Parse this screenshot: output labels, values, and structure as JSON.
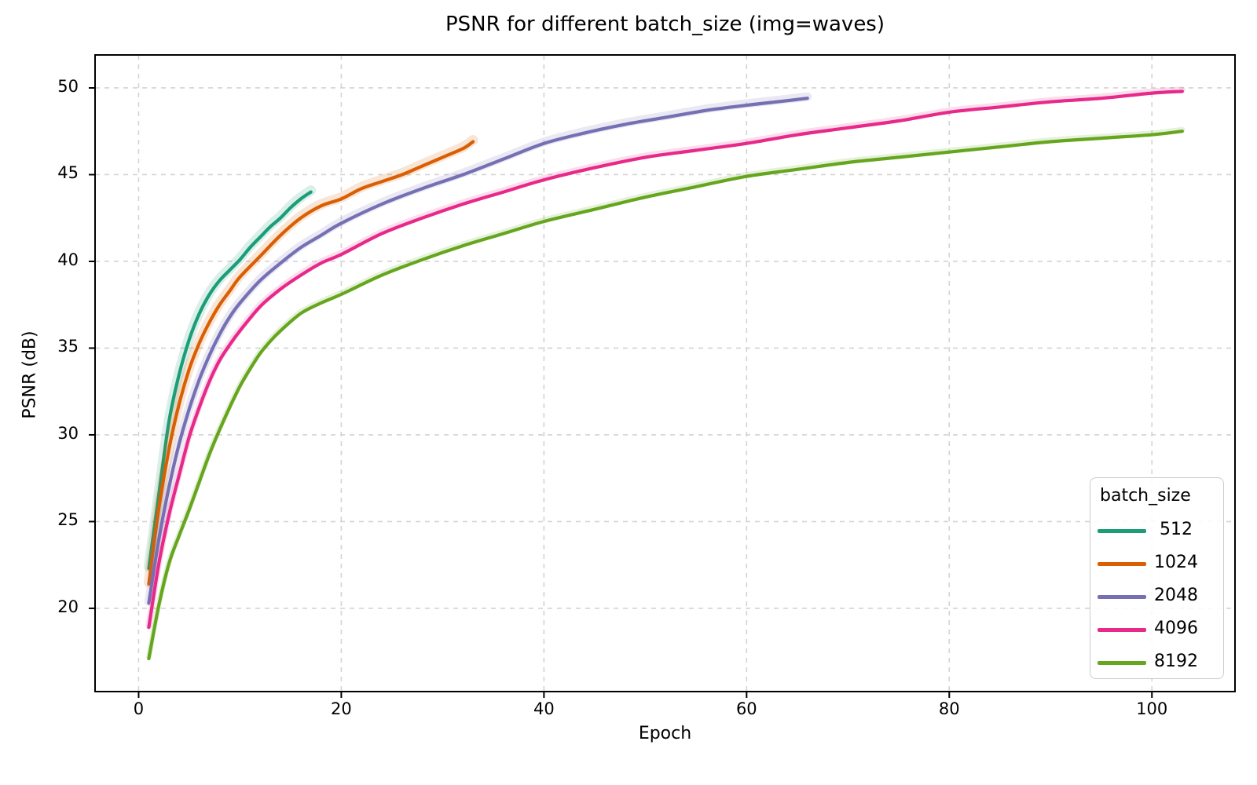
{
  "chart_data": {
    "type": "line",
    "title": "PSNR for different batch_size (img=waves)",
    "xlabel": "Epoch",
    "ylabel": "PSNR (dB)",
    "xlim": [
      -4.3,
      108.2
    ],
    "ylim": [
      15.2,
      51.9
    ],
    "x_ticks": [
      "0",
      "20",
      "40",
      "60",
      "80",
      "100"
    ],
    "x_tick_values": [
      0,
      20,
      40,
      60,
      80,
      100
    ],
    "y_ticks": [
      "20",
      "25",
      "30",
      "35",
      "40",
      "45",
      "50"
    ],
    "y_tick_values": [
      20,
      25,
      30,
      35,
      40,
      45,
      50
    ],
    "grid": "dashed",
    "grid_color": "#d3d3d3",
    "spine_color": "#000000",
    "legend": {
      "title": "batch_size",
      "position": "lower right"
    },
    "series": [
      {
        "name": "512",
        "color": "#1b9e77",
        "band_width": 13,
        "points": [
          [
            1,
            22.3
          ],
          [
            2,
            26.6
          ],
          [
            3,
            30.8
          ],
          [
            4,
            33.5
          ],
          [
            5,
            35.5
          ],
          [
            6,
            37.0
          ],
          [
            7,
            38.1
          ],
          [
            8,
            38.9
          ],
          [
            9,
            39.5
          ],
          [
            10,
            40.1
          ],
          [
            11,
            40.8
          ],
          [
            12,
            41.4
          ],
          [
            13,
            42.0
          ],
          [
            14,
            42.5
          ],
          [
            15,
            43.1
          ],
          [
            16,
            43.6
          ],
          [
            17,
            44.0
          ]
        ]
      },
      {
        "name": "1024",
        "color": "#d95f02",
        "band_width": 13,
        "points": [
          [
            1,
            21.4
          ],
          [
            2,
            25.8
          ],
          [
            3,
            29.2
          ],
          [
            4,
            31.8
          ],
          [
            5,
            33.8
          ],
          [
            6,
            35.3
          ],
          [
            7,
            36.5
          ],
          [
            8,
            37.5
          ],
          [
            9,
            38.3
          ],
          [
            10,
            39.1
          ],
          [
            12,
            40.3
          ],
          [
            14,
            41.5
          ],
          [
            16,
            42.5
          ],
          [
            18,
            43.2
          ],
          [
            20,
            43.6
          ],
          [
            22,
            44.2
          ],
          [
            24,
            44.6
          ],
          [
            26,
            45.0
          ],
          [
            28,
            45.5
          ],
          [
            30,
            46.0
          ],
          [
            32,
            46.5
          ],
          [
            33,
            46.9
          ]
        ]
      },
      {
        "name": "2048",
        "color": "#7570b3",
        "band_width": 11,
        "points": [
          [
            1,
            20.3
          ],
          [
            2,
            24.0
          ],
          [
            3,
            27.0
          ],
          [
            4,
            29.5
          ],
          [
            5,
            31.5
          ],
          [
            6,
            33.2
          ],
          [
            7,
            34.6
          ],
          [
            8,
            35.8
          ],
          [
            9,
            36.8
          ],
          [
            10,
            37.6
          ],
          [
            12,
            38.9
          ],
          [
            14,
            39.9
          ],
          [
            16,
            40.8
          ],
          [
            18,
            41.5
          ],
          [
            20,
            42.2
          ],
          [
            24,
            43.3
          ],
          [
            28,
            44.2
          ],
          [
            32,
            45.0
          ],
          [
            36,
            45.9
          ],
          [
            40,
            46.8
          ],
          [
            44,
            47.4
          ],
          [
            48,
            47.9
          ],
          [
            52,
            48.3
          ],
          [
            56,
            48.7
          ],
          [
            60,
            49.0
          ],
          [
            63,
            49.2
          ],
          [
            66,
            49.4
          ]
        ]
      },
      {
        "name": "4096",
        "color": "#e7298a",
        "band_width": 8,
        "points": [
          [
            1,
            18.9
          ],
          [
            2,
            22.6
          ],
          [
            3,
            25.4
          ],
          [
            4,
            27.7
          ],
          [
            5,
            29.9
          ],
          [
            6,
            31.6
          ],
          [
            7,
            33.1
          ],
          [
            8,
            34.3
          ],
          [
            9,
            35.2
          ],
          [
            10,
            36.0
          ],
          [
            12,
            37.4
          ],
          [
            14,
            38.4
          ],
          [
            16,
            39.2
          ],
          [
            18,
            39.9
          ],
          [
            20,
            40.4
          ],
          [
            24,
            41.6
          ],
          [
            28,
            42.5
          ],
          [
            32,
            43.3
          ],
          [
            36,
            44.0
          ],
          [
            40,
            44.7
          ],
          [
            45,
            45.4
          ],
          [
            50,
            46.0
          ],
          [
            55,
            46.4
          ],
          [
            60,
            46.8
          ],
          [
            65,
            47.3
          ],
          [
            70,
            47.7
          ],
          [
            75,
            48.1
          ],
          [
            80,
            48.6
          ],
          [
            85,
            48.9
          ],
          [
            90,
            49.2
          ],
          [
            95,
            49.4
          ],
          [
            100,
            49.7
          ],
          [
            103,
            49.8
          ]
        ]
      },
      {
        "name": "8192",
        "color": "#66a61e",
        "band_width": 7,
        "points": [
          [
            1,
            17.1
          ],
          [
            2,
            20.2
          ],
          [
            3,
            22.6
          ],
          [
            4,
            24.2
          ],
          [
            5,
            25.7
          ],
          [
            6,
            27.3
          ],
          [
            7,
            28.9
          ],
          [
            8,
            30.3
          ],
          [
            9,
            31.6
          ],
          [
            10,
            32.8
          ],
          [
            11,
            33.8
          ],
          [
            12,
            34.7
          ],
          [
            13,
            35.4
          ],
          [
            14,
            36.0
          ],
          [
            16,
            37.0
          ],
          [
            18,
            37.6
          ],
          [
            20,
            38.1
          ],
          [
            24,
            39.2
          ],
          [
            28,
            40.1
          ],
          [
            32,
            40.9
          ],
          [
            36,
            41.6
          ],
          [
            40,
            42.3
          ],
          [
            45,
            43.0
          ],
          [
            50,
            43.7
          ],
          [
            55,
            44.3
          ],
          [
            60,
            44.9
          ],
          [
            65,
            45.3
          ],
          [
            70,
            45.7
          ],
          [
            75,
            46.0
          ],
          [
            80,
            46.3
          ],
          [
            85,
            46.6
          ],
          [
            90,
            46.9
          ],
          [
            95,
            47.1
          ],
          [
            100,
            47.3
          ],
          [
            103,
            47.5
          ]
        ]
      }
    ]
  }
}
